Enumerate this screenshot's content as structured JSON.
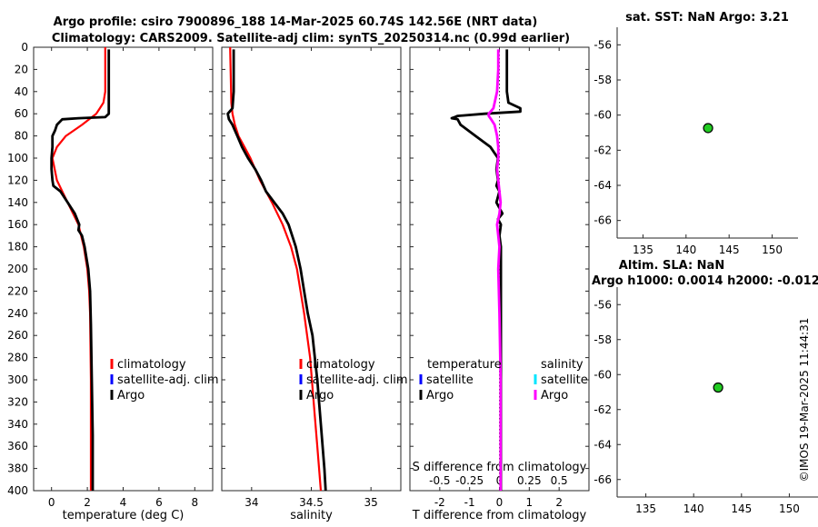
{
  "header": {
    "title_line1": "Argo profile: csiro 7900896_188 14-Mar-2025 60.74S 142.56E (NRT data)",
    "title_line2": "Climatology: CARS2009. Satellite-adj clim: synTS_20250314.nc (0.99d earlier)"
  },
  "watermark": "©IMOS 19-Mar-2025 11:44:31",
  "colors": {
    "climatology": "#ff0000",
    "satellite": "#0000ff",
    "argo": "#000000",
    "sat_salinity": "#00e5ff",
    "argo_salinity_diff": "#ff00ff",
    "marker": "#22cc22"
  },
  "chart_data": [
    {
      "id": "temperature",
      "type": "line",
      "xlabel": "temperature (deg C)",
      "xlim": [
        -1,
        9
      ],
      "xticks": [
        0,
        2,
        4,
        6,
        8
      ],
      "xtick_labels": [
        "0",
        "2",
        "4",
        "6",
        "8"
      ],
      "ylim": [
        0,
        400
      ],
      "yticks": [
        0,
        20,
        40,
        60,
        80,
        100,
        120,
        140,
        160,
        180,
        200,
        220,
        240,
        260,
        280,
        300,
        320,
        340,
        360,
        380,
        400
      ],
      "ytick_labels": [
        "0",
        "20",
        "40",
        "60",
        "80",
        "100",
        "120",
        "140",
        "160",
        "180",
        "200",
        "220",
        "240",
        "260",
        "280",
        "300",
        "320",
        "340",
        "360",
        "380",
        "400"
      ],
      "y_reversed": true,
      "legend": [
        "climatology",
        "satellite-adj. clim",
        "Argo"
      ],
      "series": [
        {
          "name": "climatology",
          "color": "#ff0000",
          "depth": [
            0,
            40,
            50,
            55,
            60,
            70,
            80,
            90,
            100,
            120,
            140,
            160,
            180,
            200,
            220,
            240,
            300,
            400
          ],
          "values": [
            3.0,
            3.0,
            2.9,
            2.7,
            2.5,
            1.7,
            0.8,
            0.3,
            0.05,
            0.3,
            0.9,
            1.5,
            1.8,
            2.0,
            2.1,
            2.15,
            2.2,
            2.2
          ]
        },
        {
          "name": "Argo",
          "color": "#000000",
          "depth": [
            2,
            20,
            40,
            60,
            63,
            64,
            65,
            70,
            75,
            80,
            90,
            100,
            110,
            120,
            125,
            130,
            140,
            150,
            160,
            165,
            170,
            180,
            190,
            200,
            220,
            250,
            300,
            350,
            400
          ],
          "values": [
            3.2,
            3.2,
            3.2,
            3.2,
            3.0,
            1.5,
            0.6,
            0.3,
            0.2,
            0.05,
            0.05,
            0.0,
            0.0,
            0.05,
            0.1,
            0.5,
            0.9,
            1.3,
            1.55,
            1.5,
            1.7,
            1.85,
            1.95,
            2.05,
            2.15,
            2.2,
            2.25,
            2.3,
            2.3
          ]
        }
      ]
    },
    {
      "id": "salinity",
      "type": "line",
      "xlabel": "salinity",
      "xlim": [
        33.75,
        35.25
      ],
      "xticks": [
        34,
        34.5,
        35
      ],
      "xtick_labels": [
        "34",
        "34.5",
        "35"
      ],
      "ylim": [
        0,
        400
      ],
      "y_reversed": true,
      "legend": [
        "climatology",
        "satellite-adj. clim",
        "Argo"
      ],
      "series": [
        {
          "name": "climatology",
          "color": "#ff0000",
          "depth": [
            0,
            50,
            60,
            70,
            80,
            90,
            100,
            120,
            140,
            160,
            180,
            200,
            240,
            280,
            320,
            360,
            400
          ],
          "values": [
            33.82,
            33.83,
            33.84,
            33.86,
            33.89,
            33.94,
            33.99,
            34.07,
            34.17,
            34.26,
            34.33,
            34.38,
            34.44,
            34.49,
            34.52,
            34.55,
            34.58
          ]
        },
        {
          "name": "Argo",
          "color": "#000000",
          "depth": [
            2,
            40,
            55,
            60,
            65,
            70,
            75,
            80,
            90,
            100,
            110,
            120,
            130,
            140,
            150,
            160,
            170,
            180,
            200,
            220,
            240,
            260,
            280,
            300,
            340,
            380,
            400
          ],
          "values": [
            33.85,
            33.85,
            33.84,
            33.8,
            33.81,
            33.84,
            33.86,
            33.88,
            33.92,
            33.97,
            34.03,
            34.08,
            34.12,
            34.19,
            34.26,
            34.31,
            34.34,
            34.37,
            34.41,
            34.44,
            34.47,
            34.51,
            34.53,
            34.55,
            34.58,
            34.61,
            34.62
          ]
        }
      ]
    },
    {
      "id": "difference",
      "type": "line",
      "xlabel": "T difference from climatology",
      "xlabel_top": "S difference from climatology",
      "xlim": [
        -3,
        3
      ],
      "xticks": [
        -2,
        -1,
        0,
        1,
        2
      ],
      "xtick_labels": [
        "-2",
        "-1",
        "0",
        "1",
        "2"
      ],
      "s_ticks": [
        -0.5,
        -0.25,
        0,
        0.25,
        0.5
      ],
      "s_tick_labels": [
        "-0.5",
        "-0.25",
        "0",
        "0.25",
        "0.5"
      ],
      "ylim": [
        0,
        400
      ],
      "y_reversed": true,
      "legend_left_title": "temperature",
      "legend_right_title": "salinity",
      "legend_left": [
        "satellite",
        "Argo"
      ],
      "legend_right": [
        "satellite",
        "Argo"
      ],
      "series": [
        {
          "name": "T Argo - clim",
          "color": "#000000",
          "depth": [
            2,
            40,
            50,
            55,
            58,
            60,
            62,
            63,
            64,
            65,
            70,
            80,
            90,
            100,
            110,
            120,
            125,
            130,
            140,
            150,
            155,
            160,
            170,
            180,
            200,
            250,
            300,
            400
          ],
          "values": [
            0.25,
            0.25,
            0.3,
            0.7,
            0.7,
            -0.5,
            -1.4,
            -1.5,
            -1.6,
            -1.4,
            -1.3,
            -0.8,
            -0.3,
            -0.05,
            -0.1,
            -0.05,
            -0.1,
            0.0,
            -0.1,
            0.1,
            -0.05,
            0.05,
            0.0,
            0.05,
            0.05,
            0.05,
            0.05,
            0.05
          ]
        },
        {
          "name": "S Argo - clim",
          "color": "#ff00ff",
          "depth": [
            2,
            20,
            40,
            55,
            60,
            62,
            65,
            70,
            80,
            90,
            100,
            110,
            120,
            130,
            140,
            150,
            160,
            180,
            200,
            240,
            300,
            350,
            400
          ],
          "values": [
            -0.01,
            -0.01,
            -0.02,
            -0.05,
            -0.09,
            -0.09,
            -0.07,
            -0.04,
            -0.02,
            -0.01,
            -0.01,
            -0.02,
            -0.01,
            0.0,
            0.01,
            0.0,
            -0.02,
            0.0,
            -0.01,
            0.0,
            0.01,
            0.01,
            0.01
          ]
        }
      ]
    },
    {
      "id": "sst_map",
      "type": "scatter",
      "title": "sat. SST: NaN Argo: 3.21",
      "xlim": [
        132,
        153
      ],
      "xticks": [
        135,
        140,
        145,
        150
      ],
      "xtick_labels": [
        "135",
        "140",
        "145",
        "150"
      ],
      "ylim": [
        -67,
        -55
      ],
      "yticks": [
        -56,
        -58,
        -60,
        -62,
        -64,
        -66
      ],
      "ytick_labels": [
        "-56",
        "-58",
        "-60",
        "-62",
        "-64",
        "-66"
      ],
      "x": [
        142.56
      ],
      "y": [
        -60.74
      ]
    },
    {
      "id": "sla_map",
      "type": "scatter",
      "title": "Altim. SLA: NaN",
      "subtitle": "Argo h1000: 0.0014 h2000: -0.012",
      "xlim": [
        132,
        153
      ],
      "xticks": [
        135,
        140,
        145,
        150
      ],
      "xtick_labels": [
        "135",
        "140",
        "145",
        "150"
      ],
      "ylim": [
        -67,
        -55
      ],
      "yticks": [
        -56,
        -58,
        -60,
        -62,
        -64,
        -66
      ],
      "ytick_labels": [
        "-56",
        "-58",
        "-60",
        "-62",
        "-64",
        "-66"
      ],
      "x": [
        142.56
      ],
      "y": [
        -60.74
      ]
    }
  ]
}
